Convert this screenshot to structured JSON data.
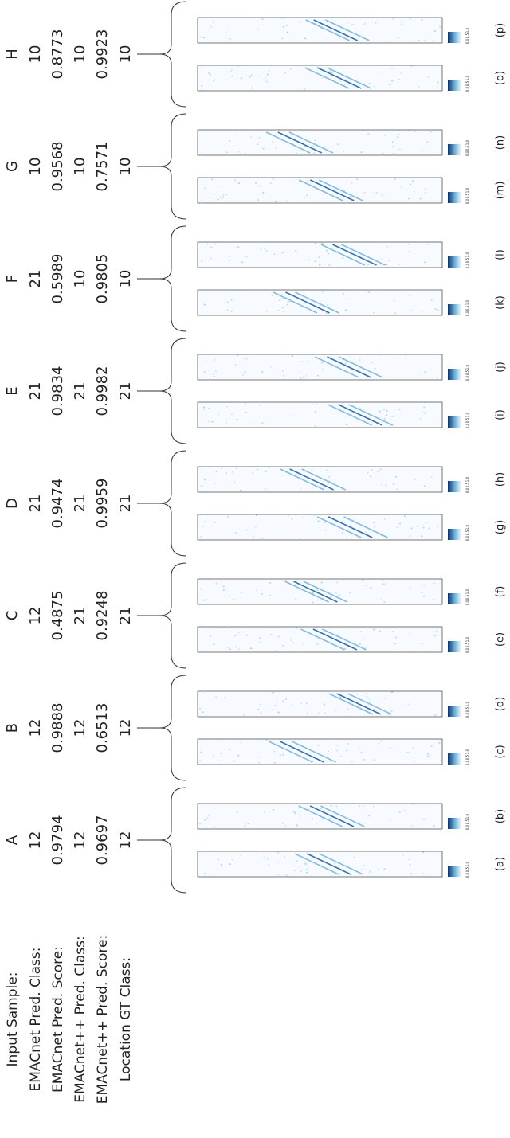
{
  "row_labels": [
    "Input Sample:",
    "EMACnet Pred. Class:",
    "EMACnet Pred. Score:",
    "EMACnet++ Pred. Class:",
    "EMACnet++ Pred. Score:",
    "Location GT Class:"
  ],
  "columns": [
    {
      "values": [
        "A",
        "12",
        "0.9794",
        "12",
        "0.9697",
        "12"
      ],
      "panels": [
        "(a)",
        "(b)"
      ]
    },
    {
      "values": [
        "B",
        "12",
        "0.9888",
        "12",
        "0.6513",
        "12"
      ],
      "panels": [
        "(c)",
        "(d)"
      ]
    },
    {
      "values": [
        "C",
        "12",
        "0.4875",
        "21",
        "0.9248",
        "21"
      ],
      "panels": [
        "(e)",
        "(f)"
      ]
    },
    {
      "values": [
        "D",
        "21",
        "0.9474",
        "21",
        "0.9959",
        "21"
      ],
      "panels": [
        "(g)",
        "(h)"
      ]
    },
    {
      "values": [
        "E",
        "21",
        "0.9834",
        "21",
        "0.9982",
        "21"
      ],
      "panels": [
        "(i)",
        "(j)"
      ]
    },
    {
      "values": [
        "F",
        "21",
        "0.5989",
        "10",
        "0.9805",
        "10"
      ],
      "panels": [
        "(k)",
        "(l)"
      ]
    },
    {
      "values": [
        "G",
        "10",
        "0.9568",
        "10",
        "0.7571",
        "10"
      ],
      "panels": [
        "(m)",
        "(n)"
      ]
    },
    {
      "values": [
        "H",
        "10",
        "0.8773",
        "10",
        "0.9923",
        "10"
      ],
      "panels": [
        "(o)",
        "(p)"
      ]
    }
  ],
  "colorbar_ticks": [
    "0.0",
    "0.5",
    "1.0"
  ]
}
